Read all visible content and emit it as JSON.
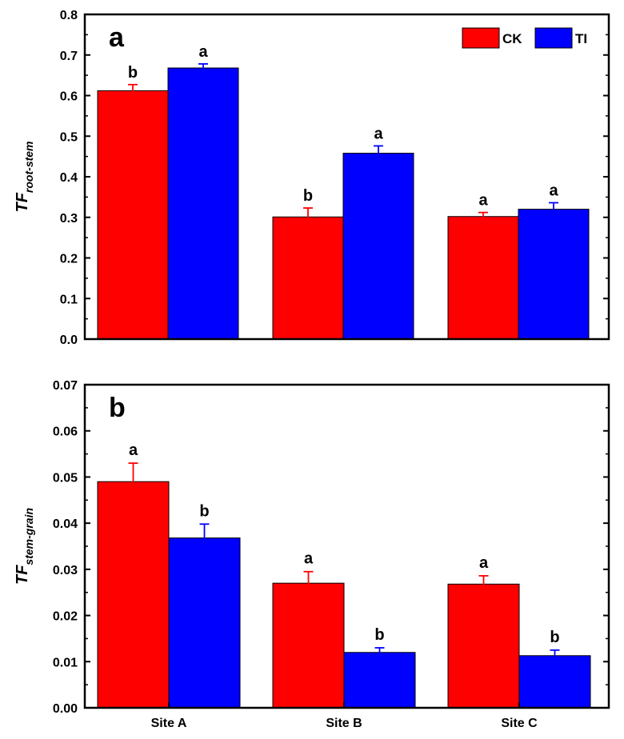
{
  "chart_data": [
    {
      "type": "bar",
      "panel_label": "a",
      "categories": [
        "Site A",
        "Site B",
        "Site C"
      ],
      "series": [
        {
          "name": "CK",
          "color": "#ff0000",
          "values": [
            0.612,
            0.301,
            0.302
          ],
          "errors": [
            0.015,
            0.022,
            0.01
          ],
          "letters": [
            "b",
            "b",
            "a"
          ]
        },
        {
          "name": "TI",
          "color": "#0000ff",
          "values": [
            0.668,
            0.458,
            0.32
          ],
          "errors": [
            0.01,
            0.018,
            0.016
          ],
          "letters": [
            "a",
            "a",
            "a"
          ]
        }
      ],
      "ylim": [
        0,
        0.8
      ],
      "yticks": [
        "0.0",
        "0.1",
        "0.2",
        "0.3",
        "0.4",
        "0.5",
        "0.6",
        "0.7",
        "0.8"
      ],
      "ylabel": {
        "main": "TF",
        "sub": "root-stem"
      },
      "legend": [
        "CK",
        "TI"
      ],
      "legend_position": "top-right"
    },
    {
      "type": "bar",
      "panel_label": "b",
      "categories": [
        "Site A",
        "Site B",
        "Site C"
      ],
      "series": [
        {
          "name": "CK",
          "color": "#ff0000",
          "values": [
            0.049,
            0.027,
            0.0268
          ],
          "errors": [
            0.004,
            0.0025,
            0.0018
          ],
          "letters": [
            "a",
            "a",
            "a"
          ]
        },
        {
          "name": "TI",
          "color": "#0000ff",
          "values": [
            0.0368,
            0.012,
            0.0113
          ],
          "errors": [
            0.003,
            0.001,
            0.0012
          ],
          "letters": [
            "b",
            "b",
            "b"
          ]
        }
      ],
      "ylim": [
        0,
        0.07
      ],
      "yticks": [
        "0.00",
        "0.01",
        "0.02",
        "0.03",
        "0.04",
        "0.05",
        "0.06",
        "0.07"
      ],
      "ylabel": {
        "main": "TF",
        "sub": "stem-grain"
      },
      "xticklabels": [
        "Site A",
        "Site B",
        "Site C"
      ]
    }
  ]
}
